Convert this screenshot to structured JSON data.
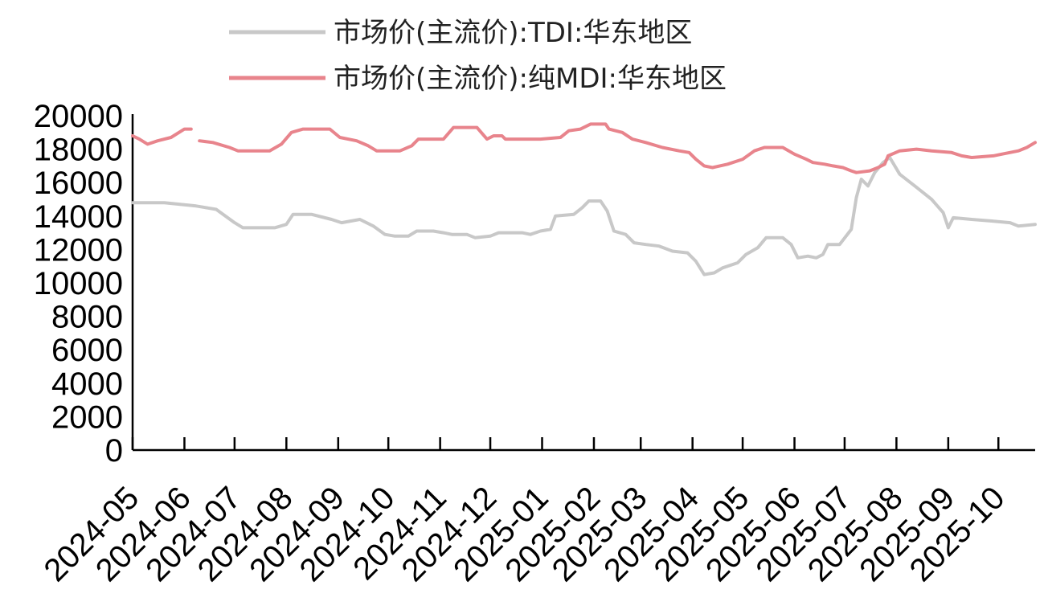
{
  "chart_data": {
    "type": "line",
    "title": "",
    "xlabel": "",
    "ylabel": "",
    "ylim": [
      0,
      20000
    ],
    "y_ticks": [
      0,
      2000,
      4000,
      6000,
      8000,
      10000,
      12000,
      14000,
      16000,
      18000,
      20000
    ],
    "x_range": [
      "2024-05-01",
      "2025-10-23"
    ],
    "x_ticks": [
      "2024-05",
      "2024-06",
      "2024-07",
      "2024-08",
      "2024-09",
      "2024-10",
      "2024-11",
      "2024-12",
      "2025-01",
      "2025-02",
      "2025-03",
      "2025-04",
      "2025-05",
      "2025-06",
      "2025-07",
      "2025-08",
      "2025-09",
      "2025-10"
    ],
    "grid": false,
    "legend_position": "top",
    "series": [
      {
        "name": "市场价(主流价):TDI:华东地区",
        "color": "#c8c8c8",
        "points": [
          [
            "2024-05-01",
            14800
          ],
          [
            "2024-05-20",
            14800
          ],
          [
            "2024-06-08",
            14600
          ],
          [
            "2024-06-20",
            14400
          ],
          [
            "2024-07-01",
            13600
          ],
          [
            "2024-07-06",
            13300
          ],
          [
            "2024-07-25",
            13300
          ],
          [
            "2024-08-01",
            13500
          ],
          [
            "2024-08-05",
            14100
          ],
          [
            "2024-08-16",
            14100
          ],
          [
            "2024-08-28",
            13800
          ],
          [
            "2024-09-03",
            13600
          ],
          [
            "2024-09-14",
            13800
          ],
          [
            "2024-09-22",
            13400
          ],
          [
            "2024-09-29",
            12900
          ],
          [
            "2024-10-05",
            12800
          ],
          [
            "2024-10-13",
            12800
          ],
          [
            "2024-10-18",
            13100
          ],
          [
            "2024-10-28",
            13100
          ],
          [
            "2024-11-03",
            13000
          ],
          [
            "2024-11-08",
            12900
          ],
          [
            "2024-11-17",
            12900
          ],
          [
            "2024-11-22",
            12700
          ],
          [
            "2024-12-01",
            12800
          ],
          [
            "2024-12-06",
            13000
          ],
          [
            "2024-12-20",
            13000
          ],
          [
            "2024-12-25",
            12900
          ],
          [
            "2024-12-31",
            13100
          ],
          [
            "2025-01-06",
            13200
          ],
          [
            "2025-01-09",
            14000
          ],
          [
            "2025-01-20",
            14100
          ],
          [
            "2025-01-25",
            14500
          ],
          [
            "2025-01-29",
            14900
          ],
          [
            "2025-02-05",
            14900
          ],
          [
            "2025-02-09",
            14300
          ],
          [
            "2025-02-13",
            13100
          ],
          [
            "2025-02-20",
            12900
          ],
          [
            "2025-02-25",
            12400
          ],
          [
            "2025-03-04",
            12300
          ],
          [
            "2025-03-12",
            12200
          ],
          [
            "2025-03-20",
            11900
          ],
          [
            "2025-03-29",
            11800
          ],
          [
            "2025-04-03",
            11300
          ],
          [
            "2025-04-08",
            10500
          ],
          [
            "2025-04-14",
            10600
          ],
          [
            "2025-04-19",
            10900
          ],
          [
            "2025-04-28",
            11200
          ],
          [
            "2025-05-03",
            11700
          ],
          [
            "2025-05-10",
            12100
          ],
          [
            "2025-05-15",
            12700
          ],
          [
            "2025-05-25",
            12700
          ],
          [
            "2025-05-30",
            12300
          ],
          [
            "2025-06-03",
            11500
          ],
          [
            "2025-06-09",
            11600
          ],
          [
            "2025-06-14",
            11500
          ],
          [
            "2025-06-18",
            11700
          ],
          [
            "2025-06-21",
            12300
          ],
          [
            "2025-06-28",
            12300
          ],
          [
            "2025-07-05",
            13200
          ],
          [
            "2025-07-08",
            15100
          ],
          [
            "2025-07-11",
            16200
          ],
          [
            "2025-07-15",
            15800
          ],
          [
            "2025-07-19",
            16600
          ],
          [
            "2025-07-24",
            17200
          ],
          [
            "2025-07-28",
            17500
          ],
          [
            "2025-08-03",
            16500
          ],
          [
            "2025-08-12",
            15800
          ],
          [
            "2025-08-22",
            15000
          ],
          [
            "2025-08-29",
            14200
          ],
          [
            "2025-09-01",
            13300
          ],
          [
            "2025-09-04",
            13900
          ],
          [
            "2025-09-15",
            13800
          ],
          [
            "2025-09-27",
            13700
          ],
          [
            "2025-10-08",
            13600
          ],
          [
            "2025-10-13",
            13400
          ],
          [
            "2025-10-23",
            13500
          ]
        ]
      },
      {
        "name": "市场价(主流价):纯MDI:华东地区",
        "color": "#e8848c",
        "points": [
          [
            "2024-05-01",
            18800
          ],
          [
            "2024-05-05",
            18600
          ],
          [
            "2024-05-10",
            18300
          ],
          [
            "2024-05-16",
            18500
          ],
          [
            "2024-05-24",
            18700
          ],
          [
            "2024-06-01",
            19200
          ],
          [
            "2024-06-05",
            19200
          ],
          null,
          [
            "2024-06-10",
            18500
          ],
          [
            "2024-06-18",
            18400
          ],
          [
            "2024-06-28",
            18100
          ],
          [
            "2024-07-03",
            17900
          ],
          [
            "2024-07-22",
            17900
          ],
          [
            "2024-07-29",
            18300
          ],
          [
            "2024-08-04",
            19000
          ],
          [
            "2024-08-11",
            19200
          ],
          [
            "2024-08-27",
            19200
          ],
          [
            "2024-09-02",
            18700
          ],
          [
            "2024-09-12",
            18500
          ],
          [
            "2024-09-19",
            18200
          ],
          [
            "2024-09-24",
            17900
          ],
          [
            "2024-10-08",
            17900
          ],
          [
            "2024-10-15",
            18200
          ],
          [
            "2024-10-19",
            18600
          ],
          [
            "2024-11-03",
            18600
          ],
          [
            "2024-11-09",
            19300
          ],
          [
            "2024-11-23",
            19300
          ],
          [
            "2024-11-29",
            18600
          ],
          [
            "2024-12-03",
            18800
          ],
          [
            "2024-12-08",
            18800
          ],
          [
            "2024-12-10",
            18600
          ],
          [
            "2024-12-31",
            18600
          ],
          [
            "2025-01-12",
            18700
          ],
          [
            "2025-01-17",
            19100
          ],
          [
            "2025-01-24",
            19200
          ],
          [
            "2025-01-30",
            19500
          ],
          [
            "2025-02-08",
            19500
          ],
          [
            "2025-02-10",
            19200
          ],
          [
            "2025-02-18",
            19000
          ],
          [
            "2025-02-24",
            18600
          ],
          [
            "2025-03-04",
            18400
          ],
          [
            "2025-03-14",
            18100
          ],
          [
            "2025-03-24",
            17900
          ],
          [
            "2025-03-30",
            17800
          ],
          [
            "2025-04-03",
            17400
          ],
          [
            "2025-04-08",
            17000
          ],
          [
            "2025-04-13",
            16900
          ],
          [
            "2025-04-22",
            17100
          ],
          [
            "2025-05-01",
            17400
          ],
          [
            "2025-05-08",
            17900
          ],
          [
            "2025-05-14",
            18100
          ],
          [
            "2025-05-25",
            18100
          ],
          [
            "2025-06-01",
            17700
          ],
          [
            "2025-06-08",
            17400
          ],
          [
            "2025-06-12",
            17200
          ],
          [
            "2025-06-19",
            17100
          ],
          [
            "2025-06-24",
            17000
          ],
          [
            "2025-06-30",
            16900
          ],
          [
            "2025-07-05",
            16700
          ],
          [
            "2025-07-08",
            16600
          ],
          [
            "2025-07-16",
            16700
          ],
          [
            "2025-07-21",
            16900
          ],
          [
            "2025-07-25",
            17100
          ],
          [
            "2025-07-27",
            17600
          ],
          [
            "2025-08-03",
            17900
          ],
          [
            "2025-08-13",
            18000
          ],
          [
            "2025-08-22",
            17900
          ],
          [
            "2025-09-03",
            17800
          ],
          [
            "2025-09-09",
            17600
          ],
          [
            "2025-09-15",
            17500
          ],
          [
            "2025-09-28",
            17600
          ],
          [
            "2025-10-03",
            17700
          ],
          [
            "2025-10-13",
            17900
          ],
          [
            "2025-10-18",
            18100
          ],
          [
            "2025-10-23",
            18400
          ]
        ]
      }
    ]
  }
}
